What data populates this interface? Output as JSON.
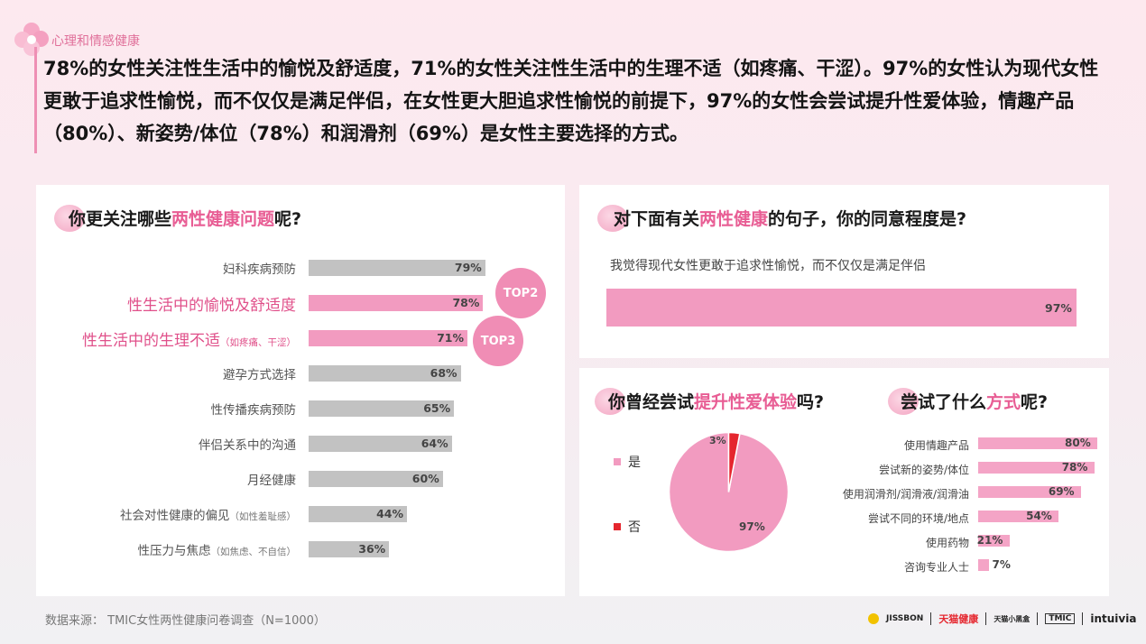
{
  "header": {
    "section_tag": "心理和情感健康",
    "headline": "78%的女性关注性生活中的愉悦及舒适度，71%的女性关注性生活中的生理不适（如疼痛、干涩）。97%的女性认为现代女性更敢于追求性愉悦，而不仅仅是满足伴侣，在女性更大胆追求性愉悦的前提下，97%的女性会尝试提升性爱体验，情趣产品（80%）、新姿势/体位（78%）和润滑剂（69%）是女性主要选择的方式。"
  },
  "left_panel": {
    "title_pre": "你更关注哪些",
    "title_hl": "两性健康问题",
    "title_post": "呢?",
    "badges": [
      "TOP2",
      "TOP3"
    ]
  },
  "top_right_panel": {
    "title_pre": "对下面有关",
    "title_hl": "两性健康",
    "title_post": "的句子，你的同意程度是?",
    "statement": "我觉得现代女性更敢于追求性愉悦，而不仅仅是满足伴侣"
  },
  "bottom_right_panel": {
    "pie_title_pre": "你曾经尝试",
    "pie_title_hl": "提升性爱体验",
    "pie_title_post": "吗?",
    "method_title_pre": "尝试了什么",
    "method_title_hl": "方式",
    "method_title_post": "呢?"
  },
  "chart_data": [
    {
      "type": "bar",
      "orientation": "horizontal",
      "categories": [
        "妇科疾病预防",
        "性生活中的愉悦及舒适度",
        "性生活中的生理不适",
        "避孕方式选择",
        "性传播疾病预防",
        "伴侣关系中的沟通",
        "月经健康",
        "社会对性健康的偏见",
        "性压力与焦虑"
      ],
      "category_notes": [
        "",
        "",
        "（如疼痛、干涩）",
        "",
        "",
        "",
        "",
        "（如性羞耻感）",
        "（如焦虑、不自信）"
      ],
      "values": [
        79,
        78,
        71,
        68,
        65,
        64,
        60,
        44,
        36
      ],
      "value_labels": [
        "79%",
        "78%",
        "71%",
        "68%",
        "65%",
        "64%",
        "60%",
        "44%",
        "36%"
      ],
      "highlighted": [
        false,
        true,
        true,
        false,
        false,
        false,
        false,
        false,
        false
      ],
      "colors": {
        "default": "#c2c2c2",
        "highlight": "#f29bc0"
      }
    },
    {
      "type": "bar",
      "orientation": "horizontal",
      "categories": [
        "我觉得现代女性更敢于追求性愉悦，而不仅仅是满足伴侣"
      ],
      "values": [
        97
      ],
      "value_labels": [
        "97%"
      ],
      "colors": {
        "bar": "#f29bc0"
      }
    },
    {
      "type": "pie",
      "categories": [
        "是",
        "否"
      ],
      "values": [
        97,
        3
      ],
      "value_labels": [
        "97%",
        "3%"
      ],
      "colors": [
        "#f29bc0",
        "#e5262e"
      ]
    },
    {
      "type": "bar",
      "orientation": "horizontal",
      "categories": [
        "使用情趣产品",
        "尝试新的姿势/体位",
        "使用润滑剂/润滑液/润滑油",
        "尝试不同的环境/地点",
        "使用药物",
        "咨询专业人士"
      ],
      "values": [
        80,
        78,
        69,
        54,
        21,
        7
      ],
      "value_labels": [
        "80%",
        "78%",
        "69%",
        "54%",
        "21%",
        "7%"
      ],
      "colors": {
        "bar": "#f4a4c6"
      }
    }
  ],
  "footer": {
    "source": "数据来源： TMIC女性两性健康问卷调查（N=1000）",
    "brands": [
      "JISSBON",
      "天猫健康",
      "天猫小黑盒",
      "TMIC",
      "intuivia"
    ]
  }
}
